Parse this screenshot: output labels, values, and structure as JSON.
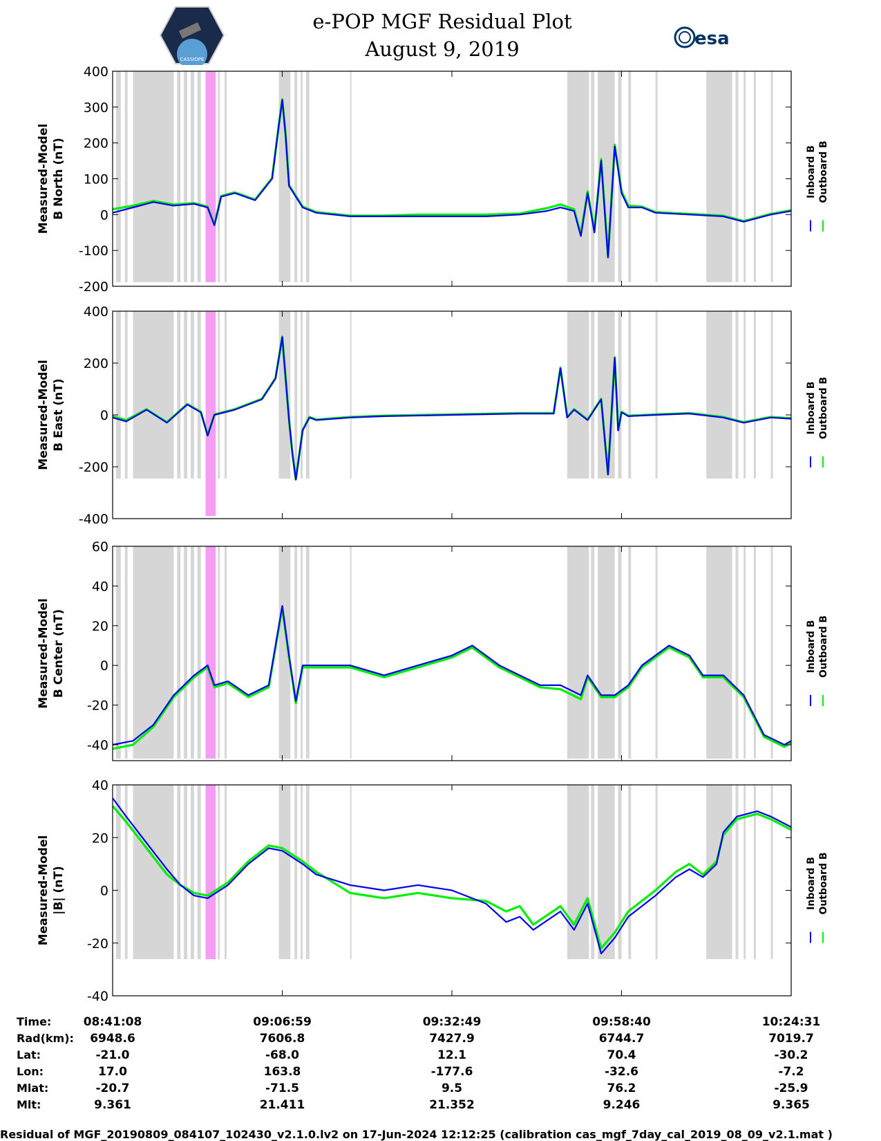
{
  "header": {
    "title_line1": "e-POP MGF Residual Plot",
    "title_line2": "August 9, 2019",
    "left_logo_text": "CASSIOPE",
    "right_logo_text": "esa"
  },
  "colors": {
    "inboard": "#0000ee",
    "outboard": "#00ee00",
    "gap_band": "#d6d6d6",
    "highlight_band": "#f59df5"
  },
  "chart_data": [
    {
      "type": "line",
      "title": "",
      "ylabel_line1": "Measured-Model",
      "ylabel_line2": "B North (nT)",
      "ylim": [
        -200,
        400
      ],
      "yticks": [
        "400",
        "300",
        "200",
        "100",
        "0",
        "-100",
        "-200"
      ],
      "legend": [
        "Inboard B",
        "Outboard B"
      ],
      "series": [
        {
          "name": "Inboard B",
          "x": [
            0,
            0.03,
            0.06,
            0.09,
            0.12,
            0.14,
            0.15,
            0.16,
            0.18,
            0.21,
            0.235,
            0.245,
            0.25,
            0.255,
            0.26,
            0.28,
            0.3,
            0.35,
            0.4,
            0.45,
            0.5,
            0.55,
            0.6,
            0.64,
            0.66,
            0.68,
            0.69,
            0.7,
            0.71,
            0.72,
            0.73,
            0.74,
            0.75,
            0.76,
            0.78,
            0.8,
            0.85,
            0.9,
            0.93,
            0.97,
            1.0
          ],
          "y": [
            5,
            20,
            35,
            25,
            30,
            20,
            -30,
            50,
            60,
            40,
            100,
            250,
            320,
            220,
            80,
            20,
            5,
            -5,
            -5,
            -5,
            -5,
            -5,
            0,
            10,
            20,
            10,
            -60,
            60,
            -50,
            150,
            -120,
            190,
            60,
            20,
            20,
            5,
            0,
            -5,
            -20,
            0,
            10
          ]
        },
        {
          "name": "Outboard B",
          "x": [
            0,
            0.03,
            0.06,
            0.09,
            0.12,
            0.14,
            0.15,
            0.16,
            0.18,
            0.21,
            0.235,
            0.245,
            0.25,
            0.255,
            0.26,
            0.28,
            0.3,
            0.35,
            0.4,
            0.45,
            0.5,
            0.55,
            0.6,
            0.64,
            0.66,
            0.68,
            0.69,
            0.7,
            0.71,
            0.72,
            0.73,
            0.74,
            0.75,
            0.76,
            0.78,
            0.8,
            0.85,
            0.9,
            0.93,
            0.97,
            1.0
          ],
          "y": [
            15,
            25,
            38,
            28,
            32,
            22,
            -28,
            52,
            62,
            42,
            102,
            252,
            322,
            222,
            82,
            22,
            7,
            -3,
            -3,
            0,
            0,
            0,
            3,
            18,
            28,
            15,
            -55,
            65,
            -45,
            155,
            -115,
            195,
            65,
            25,
            22,
            7,
            2,
            -3,
            -18,
            2,
            12
          ]
        }
      ]
    },
    {
      "type": "line",
      "title": "",
      "ylabel_line1": "Measured-Model",
      "ylabel_line2": "B East (nT)",
      "ylim": [
        -400,
        400
      ],
      "yticks": [
        "400",
        "200",
        "0",
        "-200",
        "-400"
      ],
      "legend": [
        "Inboard B",
        "Outboard B"
      ],
      "series": [
        {
          "name": "Inboard B",
          "x": [
            0,
            0.02,
            0.05,
            0.08,
            0.11,
            0.13,
            0.14,
            0.15,
            0.18,
            0.22,
            0.24,
            0.25,
            0.26,
            0.265,
            0.27,
            0.28,
            0.29,
            0.3,
            0.35,
            0.4,
            0.5,
            0.6,
            0.65,
            0.66,
            0.67,
            0.68,
            0.7,
            0.72,
            0.73,
            0.74,
            0.745,
            0.75,
            0.76,
            0.8,
            0.85,
            0.9,
            0.93,
            0.97,
            1.0
          ],
          "y": [
            -10,
            -25,
            20,
            -30,
            40,
            10,
            -80,
            0,
            20,
            60,
            140,
            300,
            -20,
            -150,
            -250,
            -60,
            -10,
            -20,
            -10,
            -5,
            0,
            5,
            5,
            180,
            -10,
            20,
            -20,
            60,
            -230,
            220,
            -60,
            10,
            -5,
            0,
            5,
            -10,
            -30,
            -10,
            -15
          ]
        },
        {
          "name": "Outboard B",
          "x": [
            0,
            0.02,
            0.05,
            0.08,
            0.11,
            0.13,
            0.14,
            0.15,
            0.18,
            0.22,
            0.24,
            0.25,
            0.26,
            0.265,
            0.27,
            0.28,
            0.29,
            0.3,
            0.35,
            0.4,
            0.5,
            0.6,
            0.65,
            0.66,
            0.67,
            0.68,
            0.7,
            0.72,
            0.73,
            0.74,
            0.745,
            0.75,
            0.76,
            0.8,
            0.85,
            0.9,
            0.93,
            0.97,
            1.0
          ],
          "y": [
            -5,
            -20,
            22,
            -28,
            42,
            12,
            -78,
            2,
            22,
            62,
            142,
            302,
            -18,
            -148,
            -248,
            -58,
            -8,
            -18,
            -8,
            -3,
            2,
            7,
            7,
            182,
            -8,
            22,
            -18,
            62,
            -228,
            222,
            -58,
            12,
            -3,
            2,
            7,
            -8,
            -28,
            -8,
            -13
          ]
        }
      ]
    },
    {
      "type": "line",
      "title": "",
      "ylabel_line1": "Measured-Model",
      "ylabel_line2": "B Center (nT)",
      "ylim": [
        -48,
        60
      ],
      "yticks": [
        "60",
        "40",
        "20",
        "0",
        "-20",
        "-40"
      ],
      "legend": [
        "Inboard B",
        "Outboard B"
      ],
      "series": [
        {
          "name": "Inboard B",
          "x": [
            0,
            0.03,
            0.06,
            0.09,
            0.12,
            0.14,
            0.15,
            0.17,
            0.2,
            0.23,
            0.25,
            0.26,
            0.27,
            0.28,
            0.3,
            0.35,
            0.4,
            0.45,
            0.5,
            0.53,
            0.57,
            0.6,
            0.63,
            0.66,
            0.69,
            0.7,
            0.72,
            0.74,
            0.76,
            0.78,
            0.82,
            0.85,
            0.87,
            0.9,
            0.93,
            0.96,
            0.99,
            1.0
          ],
          "y": [
            -40,
            -38,
            -30,
            -15,
            -5,
            0,
            -10,
            -8,
            -15,
            -10,
            30,
            5,
            -18,
            0,
            0,
            0,
            -5,
            0,
            5,
            10,
            0,
            -5,
            -10,
            -10,
            -15,
            -5,
            -15,
            -15,
            -10,
            0,
            10,
            5,
            -5,
            -5,
            -15,
            -35,
            -40,
            -38
          ]
        },
        {
          "name": "Outboard B",
          "x": [
            0,
            0.03,
            0.06,
            0.09,
            0.12,
            0.14,
            0.15,
            0.17,
            0.2,
            0.23,
            0.25,
            0.26,
            0.27,
            0.28,
            0.3,
            0.35,
            0.4,
            0.45,
            0.5,
            0.53,
            0.57,
            0.6,
            0.63,
            0.66,
            0.69,
            0.7,
            0.72,
            0.74,
            0.76,
            0.78,
            0.82,
            0.85,
            0.87,
            0.9,
            0.93,
            0.96,
            0.99,
            1.0
          ],
          "y": [
            -42,
            -40,
            -31,
            -16,
            -6,
            -1,
            -11,
            -9,
            -16,
            -11,
            29,
            4,
            -19,
            -1,
            -1,
            -1,
            -6,
            -1,
            4,
            9,
            -1,
            -6,
            -11,
            -12,
            -17,
            -6,
            -16,
            -16,
            -11,
            -1,
            9,
            4,
            -6,
            -6,
            -16,
            -36,
            -41,
            -39
          ]
        }
      ]
    },
    {
      "type": "line",
      "title": "",
      "ylabel_line1": "Measured-Model",
      "ylabel_line2": "|B| (nT)",
      "ylim": [
        -40,
        40
      ],
      "yticks": [
        "40",
        "20",
        "0",
        "-20",
        "-40"
      ],
      "legend": [
        "Inboard B",
        "Outboard B"
      ],
      "series": [
        {
          "name": "Inboard B",
          "x": [
            0,
            0.02,
            0.05,
            0.08,
            0.1,
            0.12,
            0.14,
            0.17,
            0.2,
            0.23,
            0.25,
            0.28,
            0.3,
            0.35,
            0.4,
            0.45,
            0.5,
            0.55,
            0.58,
            0.6,
            0.62,
            0.66,
            0.68,
            0.7,
            0.72,
            0.74,
            0.76,
            0.8,
            0.83,
            0.85,
            0.87,
            0.89,
            0.9,
            0.92,
            0.95,
            0.97,
            1.0
          ],
          "y": [
            35,
            28,
            18,
            8,
            2,
            -2,
            -3,
            2,
            10,
            16,
            15,
            10,
            6,
            2,
            0,
            2,
            0,
            -5,
            -12,
            -10,
            -15,
            -8,
            -15,
            -5,
            -24,
            -18,
            -10,
            -2,
            5,
            8,
            5,
            10,
            22,
            28,
            30,
            28,
            24
          ]
        },
        {
          "name": "Outboard B",
          "x": [
            0,
            0.02,
            0.05,
            0.08,
            0.1,
            0.12,
            0.14,
            0.17,
            0.2,
            0.23,
            0.25,
            0.28,
            0.3,
            0.35,
            0.4,
            0.45,
            0.5,
            0.55,
            0.58,
            0.6,
            0.62,
            0.66,
            0.68,
            0.7,
            0.72,
            0.74,
            0.76,
            0.8,
            0.83,
            0.85,
            0.87,
            0.89,
            0.9,
            0.92,
            0.95,
            0.97,
            1.0
          ],
          "y": [
            32,
            26,
            16,
            6,
            2,
            -1,
            -2,
            3,
            11,
            17,
            16,
            11,
            7,
            -1,
            -3,
            -1,
            -3,
            -4,
            -8,
            -6,
            -13,
            -6,
            -13,
            -3,
            -22,
            -16,
            -8,
            0,
            7,
            10,
            6,
            11,
            21,
            27,
            29,
            27,
            23
          ]
        }
      ]
    }
  ],
  "axis_ticks": {
    "label": "Time:",
    "times": [
      "08:41:08",
      "09:06:59",
      "09:32:49",
      "09:58:40",
      "10:24:31"
    ]
  },
  "orbit_table": [
    {
      "label": "Rad(km):",
      "values": [
        "6948.6",
        "7606.8",
        "7427.9",
        "6744.7",
        "7019.7"
      ]
    },
    {
      "label": "Lat:",
      "values": [
        "-21.0",
        "-68.0",
        "12.1",
        "70.4",
        "-30.2"
      ]
    },
    {
      "label": "Lon:",
      "values": [
        "17.0",
        "163.8",
        "-177.6",
        "-32.6",
        "-7.2"
      ]
    },
    {
      "label": "Mlat:",
      "values": [
        "-20.7",
        "-71.5",
        "9.5",
        "76.2",
        "-25.9"
      ]
    },
    {
      "label": "Mlt:",
      "values": [
        "9.361",
        "21.411",
        "21.352",
        "9.246",
        "9.365"
      ]
    }
  ],
  "footer": "Residual of MGF_20190809_084107_102430_v2.1.0.lv2 on 17-Jun-2024 12:12:25 (calibration cas_mgf_7day_cal_2019_08_09_v2.1.mat )"
}
